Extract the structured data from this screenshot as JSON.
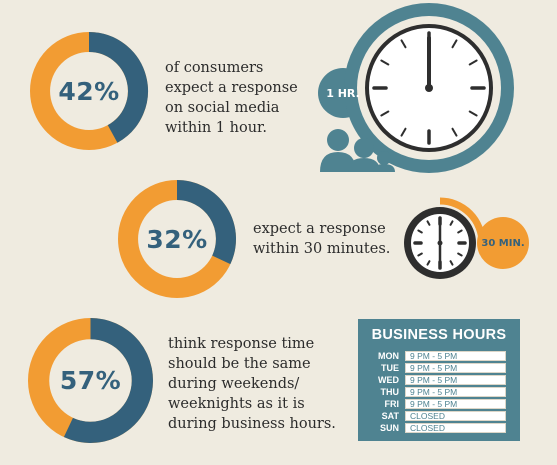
{
  "colors": {
    "background": "#efebe0",
    "orange": "#f29c33",
    "blue": "#34617c",
    "teal": "#4f8391",
    "text": "#2c2c2c"
  },
  "stats": [
    {
      "percent_label": "42%",
      "percent": 42,
      "lines": [
        "of consumers",
        "expect a response",
        "on social media",
        "within 1 hour."
      ]
    },
    {
      "percent_label": "32%",
      "percent": 32,
      "lines": [
        "expect a response",
        "within 30 minutes."
      ]
    },
    {
      "percent_label": "57%",
      "percent": 57,
      "lines": [
        "think response time",
        "should be the same",
        "during weekends/",
        "weeknights as it is",
        "during business hours."
      ]
    }
  ],
  "clock_1hr": {
    "label": "1 HR.",
    "icon": "clock-icon"
  },
  "clock_30min": {
    "label": "30 MIN.",
    "icon": "stopwatch-icon"
  },
  "users_icon": "users-icon",
  "business_hours": {
    "title": "BUSINESS HOURS",
    "rows": [
      {
        "day": "MON",
        "hours": "9 PM - 5 PM"
      },
      {
        "day": "TUE",
        "hours": "9 PM - 5 PM"
      },
      {
        "day": "WED",
        "hours": "9 PM - 5 PM"
      },
      {
        "day": "THU",
        "hours": "9 PM - 5 PM"
      },
      {
        "day": "FRI",
        "hours": "9 PM - 5 PM"
      },
      {
        "day": "SAT",
        "hours": "CLOSED"
      },
      {
        "day": "SUN",
        "hours": "CLOSED"
      }
    ]
  }
}
